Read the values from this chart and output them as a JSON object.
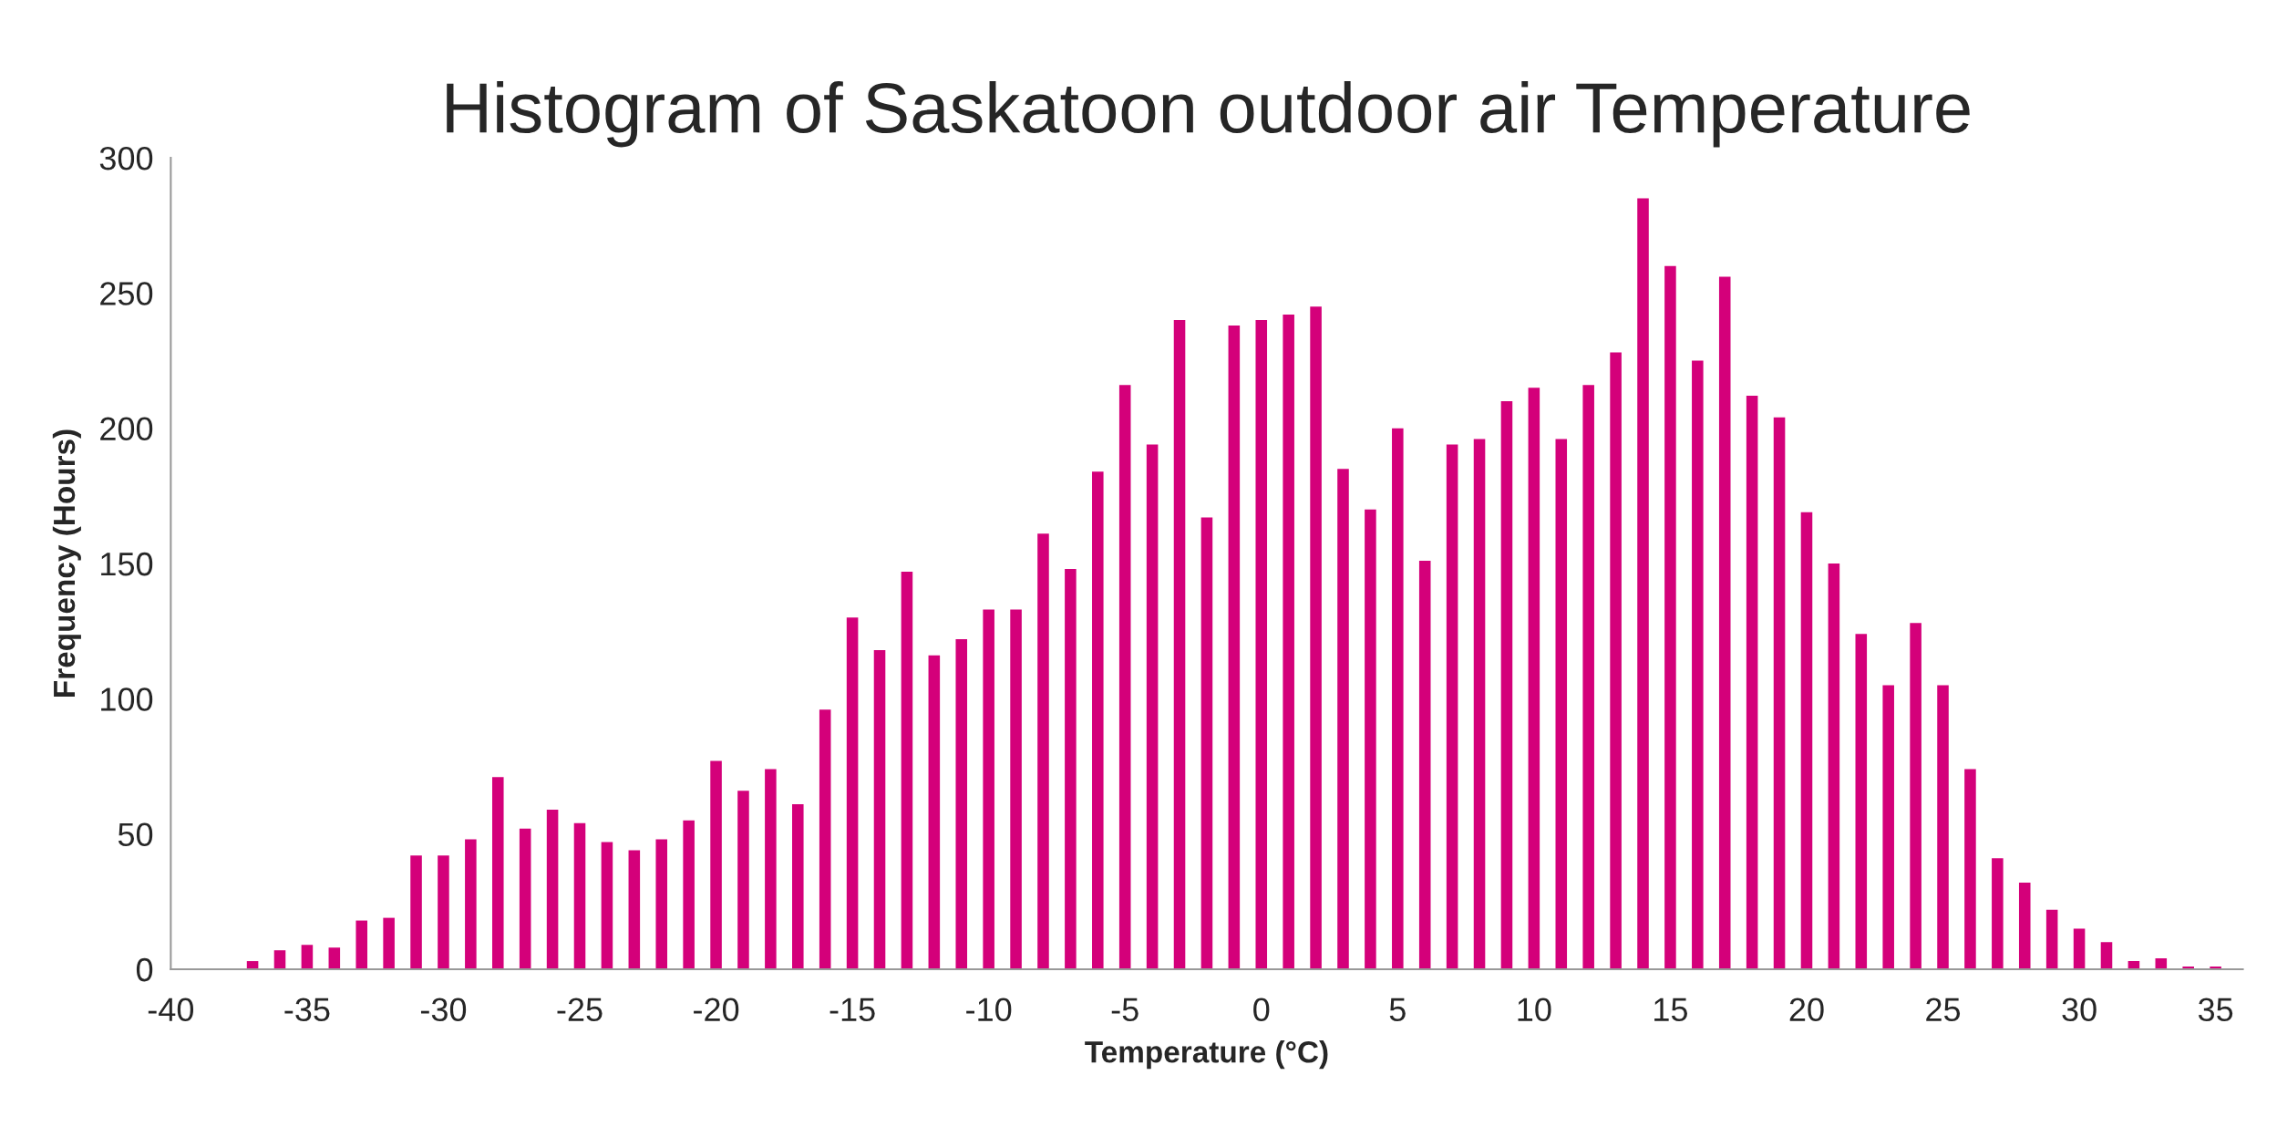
{
  "chart_data": {
    "type": "bar",
    "title": "Histogram of Saskatoon outdoor air Temperature",
    "xlabel": "Temperature (°C)",
    "ylabel": "Frequency (Hours)",
    "x": [
      -37,
      -36,
      -35,
      -34,
      -33,
      -32,
      -31,
      -30,
      -29,
      -28,
      -27,
      -26,
      -25,
      -24,
      -23,
      -22,
      -21,
      -20,
      -19,
      -18,
      -17,
      -16,
      -15,
      -14,
      -13,
      -12,
      -11,
      -10,
      -9,
      -8,
      -7,
      -6,
      -5,
      -4,
      -3,
      -2,
      -1,
      0,
      1,
      2,
      3,
      4,
      5,
      6,
      7,
      8,
      9,
      10,
      11,
      12,
      13,
      14,
      15,
      16,
      17,
      18,
      19,
      20,
      21,
      22,
      23,
      24,
      25,
      26,
      27,
      28,
      29,
      30,
      31,
      32,
      33,
      34,
      35
    ],
    "values": [
      3,
      7,
      9,
      8,
      18,
      19,
      42,
      42,
      48,
      71,
      52,
      59,
      54,
      47,
      44,
      48,
      55,
      77,
      66,
      74,
      61,
      96,
      130,
      118,
      147,
      116,
      122,
      133,
      133,
      161,
      148,
      184,
      216,
      194,
      240,
      167,
      238,
      240,
      242,
      245,
      185,
      170,
      200,
      151,
      194,
      196,
      210,
      215,
      196,
      216,
      228,
      285,
      260,
      225,
      256,
      212,
      204,
      169,
      150,
      124,
      105,
      128,
      105,
      74,
      41,
      32,
      22,
      15,
      10,
      3,
      4,
      1,
      1
    ],
    "color": "#d4007a",
    "xlim": [
      -40,
      36
    ],
    "xticks": [
      -40,
      -35,
      -30,
      -25,
      -20,
      -15,
      -10,
      -5,
      0,
      5,
      10,
      15,
      20,
      25,
      30,
      35
    ],
    "ylim": [
      0,
      300
    ],
    "yticks": [
      0,
      50,
      100,
      150,
      200,
      250,
      300
    ],
    "grid": false,
    "legend": false
  }
}
